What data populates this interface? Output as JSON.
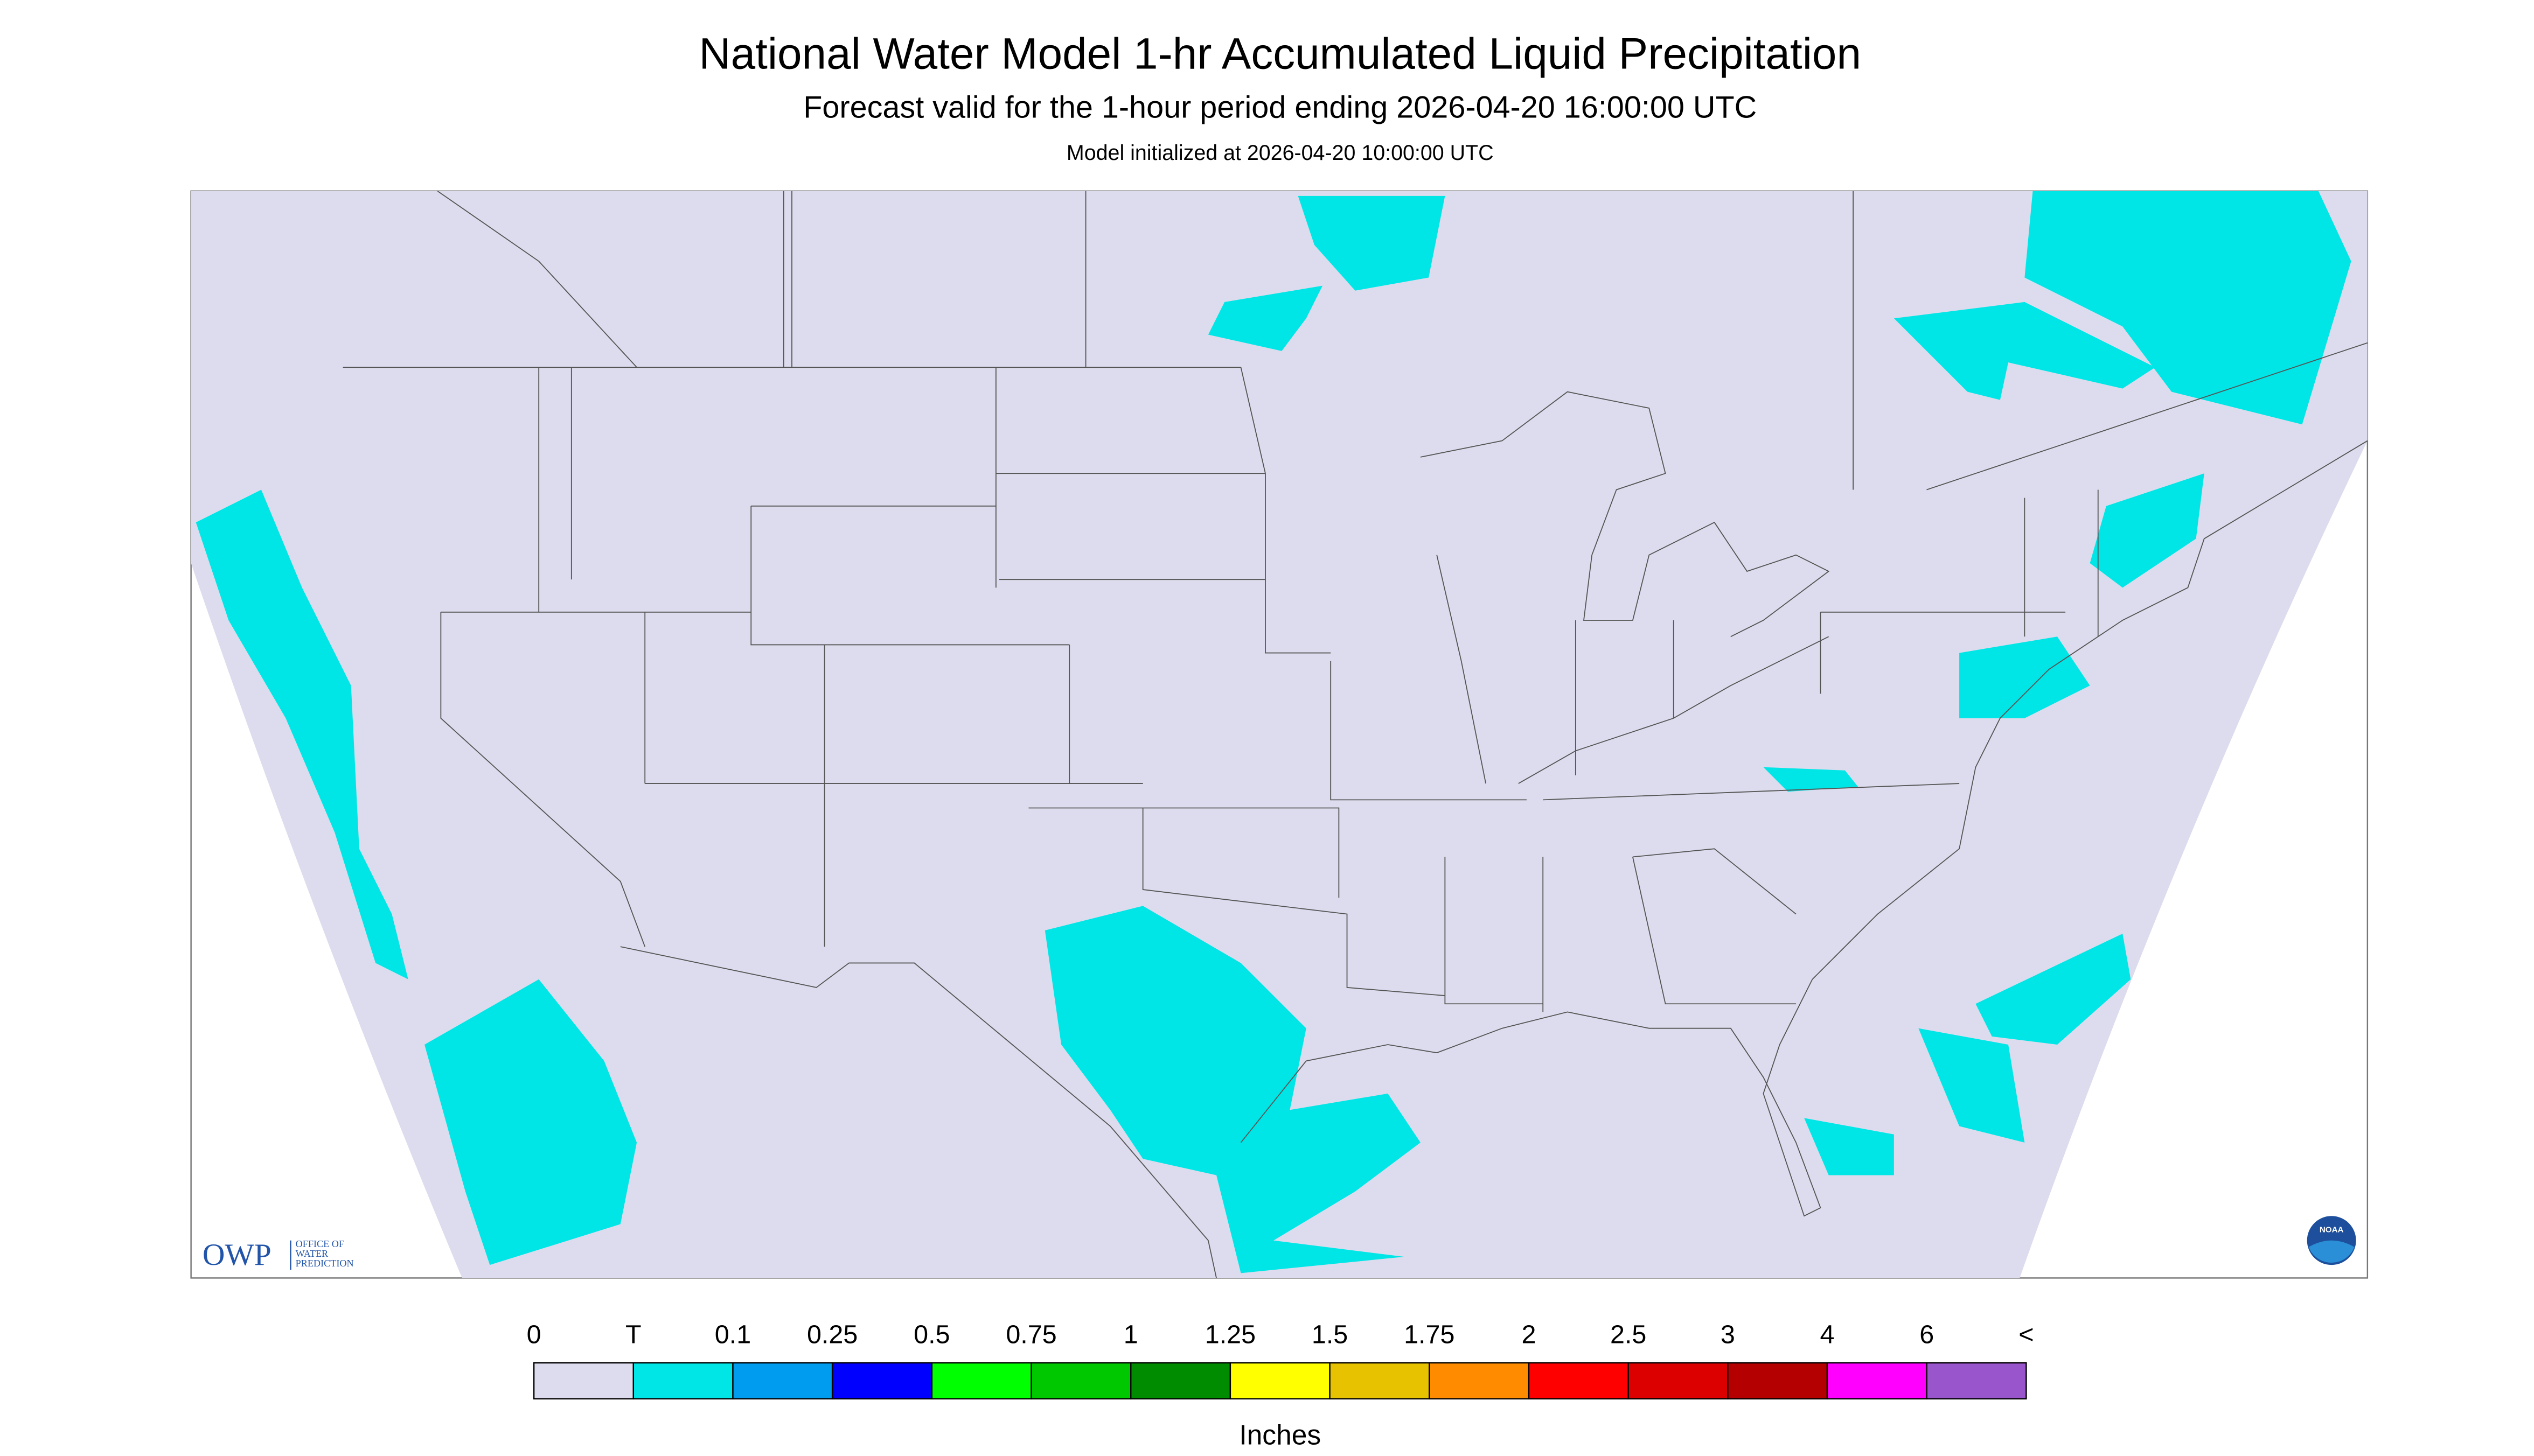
{
  "header": {
    "title": "National Water Model 1-hr Accumulated Liquid Precipitation",
    "subtitle": "Forecast valid for the 1-hour period ending 2026-04-20 16:00:00 UTC",
    "note": "Model initialized at 2026-04-20 10:00:00 UTC"
  },
  "logo": {
    "acronym": "OWP",
    "name": [
      "OFFICE OF",
      "WATER",
      "PREDICTION"
    ],
    "noaa": "NOAA"
  },
  "legend": {
    "labels": [
      "0",
      "T",
      "0.1",
      "0.25",
      "0.5",
      "0.75",
      "1",
      "1.25",
      "1.5",
      "1.75",
      "2",
      "2.5",
      "3",
      "4",
      "6",
      "<"
    ],
    "colors": [
      "#dcdcee",
      "#00e6e6",
      "#009cf0",
      "#0000ff",
      "#00ff00",
      "#00c800",
      "#008c00",
      "#ffff00",
      "#e6c200",
      "#ff8c00",
      "#ff0000",
      "#dc0000",
      "#b40000",
      "#ff00ff",
      "#9955cc"
    ],
    "unit": "Inches"
  }
}
